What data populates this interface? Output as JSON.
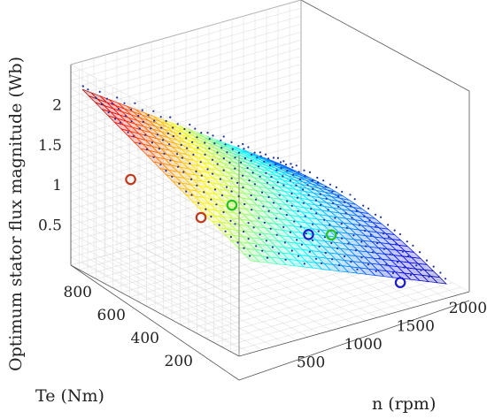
{
  "chart_data": {
    "type": "surface3d",
    "title": "",
    "xlabel": "n (rpm)",
    "ylabel": "Te (Nm)",
    "zlabel": "Optimum stator flux magnitude (Wb)",
    "xlim": [
      0,
      2200
    ],
    "ylim": [
      0,
      1000
    ],
    "zlim": [
      0,
      2.5
    ],
    "x_ticks": [
      500,
      1000,
      1500,
      2000
    ],
    "y_ticks": [
      200,
      400,
      600,
      800
    ],
    "z_ticks": [
      0.5,
      1,
      1.5,
      2
    ],
    "grid": true,
    "colormap": "jet",
    "surface_corners": [
      {
        "n": 0,
        "te": 950,
        "flux": 2.15
      },
      {
        "n": 0,
        "te": 100,
        "flux": 0.55
      },
      {
        "n": 2200,
        "te": 100,
        "flux": 0.18
      },
      {
        "n": 2200,
        "te": 950,
        "flux": 1.15
      }
    ],
    "markers": [
      {
        "n": 180,
        "te": 800,
        "flux": 1.0,
        "color": "#c0391b"
      },
      {
        "n": 1100,
        "te": 800,
        "flux": 1.0,
        "color": "#c0391b"
      },
      {
        "n": 300,
        "te": 400,
        "flux": 0.42,
        "color": "#27c224"
      },
      {
        "n": 1600,
        "te": 400,
        "flux": 0.72,
        "color": "#27c224"
      },
      {
        "n": 700,
        "te": 200,
        "flux": 0.1,
        "color": "#1c1ccc"
      },
      {
        "n": 1900,
        "te": 200,
        "flux": 0.12,
        "color": "#1c1ccc"
      }
    ]
  }
}
